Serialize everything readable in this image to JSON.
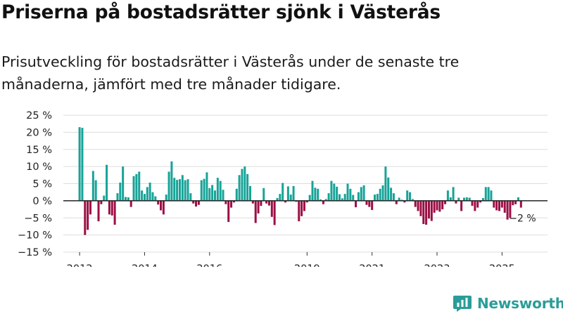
{
  "header": {
    "title": "Priserna på bostadsrätter sjönk i Västerås",
    "subtitle": "Prisutveckling för bostadsrätter i Västerås under de senaste tre månaderna, jämfört med tre månader tidigare."
  },
  "brand": {
    "name": "Newsworthy",
    "icon": "newsworthy-logo-icon"
  },
  "colors": {
    "positive": "#17a398",
    "negative": "#9b0f45",
    "grid": "#dddddd",
    "zero_line": "#222222"
  },
  "chart_data": {
    "type": "bar",
    "title": "Priserna på bostadsrätter sjönk i Västerås",
    "xlabel": "",
    "ylabel": "",
    "ylim": [
      -15,
      25
    ],
    "yticks": [
      25,
      20,
      15,
      10,
      5,
      0,
      -5,
      -10,
      -15
    ],
    "ytick_labels": [
      "25 %",
      "20 %",
      "15 %",
      "10 %",
      "5 %",
      "0 %",
      "−5 %",
      "−10 %",
      "−15 %"
    ],
    "x_start": 2012.0,
    "x_step_months": 1,
    "xticks": [
      {
        "label": "2012",
        "value": 2012.0
      },
      {
        "label": "2014",
        "value": 2014.0
      },
      {
        "label": "2016",
        "value": 2016.0
      },
      {
        "label": "2019",
        "value": 2019.0
      },
      {
        "label": "2021",
        "value": 2021.0
      },
      {
        "label": "2023",
        "value": 2023.0
      },
      {
        "label": "2025",
        "value": 2025.0
      }
    ],
    "xlim": [
      2011.5,
      2026.4
    ],
    "values": [
      21.5,
      21.3,
      -10.0,
      -8.5,
      -4.0,
      8.7,
      6.0,
      -6.0,
      -1.0,
      1.5,
      10.5,
      -4.0,
      -4.3,
      -7.0,
      2.2,
      5.3,
      10.0,
      1.1,
      1.0,
      -1.8,
      7.2,
      7.8,
      8.5,
      3.0,
      2.0,
      4.0,
      5.3,
      2.5,
      1.3,
      -1.1,
      -2.8,
      -4.0,
      1.8,
      8.5,
      11.5,
      6.7,
      6.1,
      6.3,
      7.5,
      6.0,
      6.3,
      2.2,
      -0.8,
      -1.7,
      -1.2,
      6.0,
      6.4,
      8.3,
      3.7,
      4.6,
      3.0,
      6.7,
      5.8,
      3.2,
      -1.0,
      -6.2,
      -2.0,
      -0.5,
      3.5,
      7.5,
      9.3,
      10.0,
      7.8,
      4.3,
      -0.8,
      -6.5,
      -3.7,
      -1.5,
      3.7,
      -0.8,
      -1.4,
      -4.7,
      -7.1,
      0.8,
      2.0,
      5.2,
      -0.5,
      4.2,
      1.8,
      4.3,
      -0.3,
      -6.0,
      -4.5,
      -3.0,
      -0.5,
      1.7,
      5.8,
      3.8,
      3.5,
      0.4,
      -1.0,
      0.5,
      2.2,
      5.8,
      5.0,
      4.1,
      1.9,
      0.7,
      2.0,
      5.0,
      3.5,
      1.7,
      -1.9,
      2.5,
      4.0,
      4.5,
      -1.2,
      -1.8,
      -2.7,
      1.8,
      2.0,
      3.5,
      4.5,
      10.0,
      6.8,
      3.8,
      2.2,
      -1.0,
      0.9,
      0.3,
      -0.5,
      3.0,
      2.5,
      0.5,
      -1.8,
      -3.0,
      -4.5,
      -6.8,
      -7.0,
      -5.2,
      -5.9,
      -3.5,
      -2.8,
      -3.2,
      -2.5,
      -1.0,
      3.0,
      1.0,
      4.0,
      -0.8,
      0.9,
      -3.0,
      0.9,
      1.0,
      0.9,
      -1.5,
      -3.0,
      -2.0,
      -0.5,
      0.8,
      4.0,
      4.0,
      3.0,
      -2.0,
      -2.8,
      -3.0,
      -2.0,
      -3.5,
      -5.5,
      -5.0,
      -1.3,
      -1.0,
      1.0,
      -2.0
    ],
    "annotation": {
      "text": "−2 %",
      "value": -2
    }
  }
}
